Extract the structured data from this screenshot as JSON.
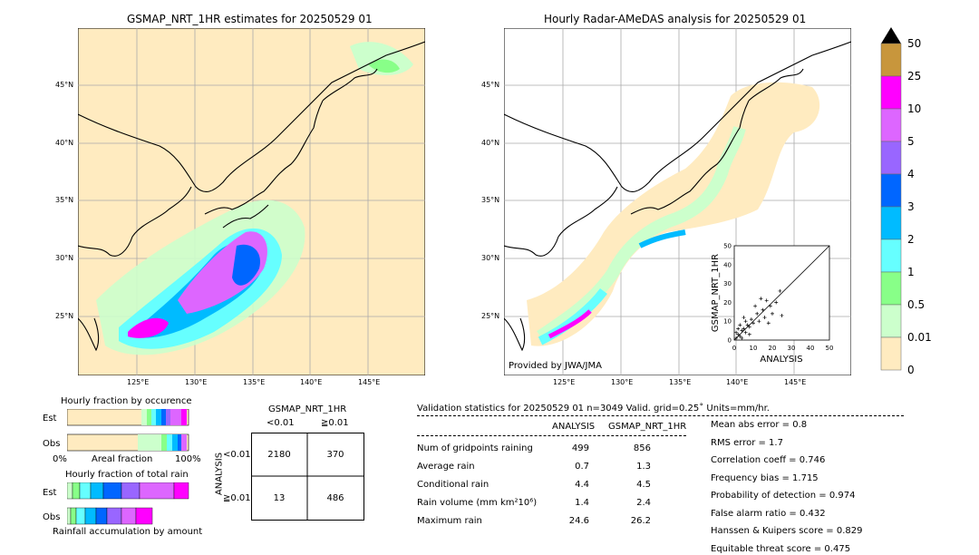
{
  "map_left": {
    "title": "GSMAP_NRT_1HR estimates for 20250529 01",
    "lat_labels": [
      "45°N",
      "40°N",
      "35°N",
      "30°N",
      "25°N"
    ],
    "lon_labels": [
      "125°E",
      "130°E",
      "135°E",
      "140°E",
      "145°E"
    ]
  },
  "map_right": {
    "title": "Hourly Radar-AMeDAS analysis for 20250529 01",
    "lat_labels": [
      "45°N",
      "40°N",
      "35°N",
      "30°N",
      "25°N"
    ],
    "lon_labels": [
      "125°E",
      "130°E",
      "135°E",
      "140°E",
      "145°E"
    ],
    "credit": "Provided by JWA/JMA"
  },
  "colorbar": {
    "levels": [
      "50",
      "25",
      "10",
      "5",
      "4",
      "3",
      "2",
      "1",
      "0.5",
      "0.01",
      "0"
    ],
    "colors": [
      "#c8963c",
      "#ff00ff",
      "#dd66ff",
      "#9966ff",
      "#0066ff",
      "#00bbff",
      "#66ffff",
      "#88ff88",
      "#ccffcc",
      "#ffebc0"
    ]
  },
  "fraction_occurrence": {
    "title": "Hourly fraction by occurence",
    "row_labels": [
      "Est",
      "Obs"
    ],
    "axis_left": "0%",
    "axis_mid": "Areal fraction",
    "axis_right": "100%"
  },
  "fraction_rain": {
    "title": "Hourly fraction of total rain",
    "row_labels": [
      "Est",
      "Obs"
    ],
    "axis_label": "Rainfall accumulation by amount"
  },
  "contingency": {
    "header": "GSMAP_NRT_1HR",
    "col_labels": [
      "<0.01",
      "≧0.01"
    ],
    "row_axis": "ANALYSIS",
    "row_labels": [
      "<0.01",
      "≧0.01"
    ],
    "cells": [
      "2180",
      "370",
      "13",
      "486"
    ]
  },
  "validation": {
    "header": "Validation statistics for 20250529 01  n=3049 Valid. grid=0.25˚ Units=mm/hr.",
    "col_analysis": "ANALYSIS",
    "col_gsmap": "GSMAP_NRT_1HR",
    "rows": [
      {
        "label": "Num of gridpoints raining",
        "analysis": "499",
        "gsmap": "856"
      },
      {
        "label": "Average rain",
        "analysis": "0.7",
        "gsmap": "1.3"
      },
      {
        "label": "Conditional rain",
        "analysis": "4.4",
        "gsmap": "4.5"
      },
      {
        "label": "Rain volume (mm km²10⁶)",
        "analysis": "1.4",
        "gsmap": "2.4"
      },
      {
        "label": "Maximum rain",
        "analysis": "24.6",
        "gsmap": "26.2"
      }
    ],
    "scores": [
      "Mean abs error =    0.8",
      "RMS error =    1.7",
      "Correlation coeff =  0.746",
      "Frequency bias =  1.715",
      "Probability of detection =  0.974",
      "False alarm ratio =  0.432",
      "Hanssen & Kuipers score =  0.829",
      "Equitable threat score =  0.475"
    ]
  },
  "chart_data": {
    "type": "scatter",
    "xlabel": "ANALYSIS",
    "ylabel": "GSMAP_NRT_1HR",
    "xlim": [
      0,
      50
    ],
    "ylim": [
      0,
      50
    ],
    "ticks": [
      "0",
      "10",
      "20",
      "30",
      "40",
      "50"
    ],
    "points": [
      [
        1,
        1
      ],
      [
        2,
        3
      ],
      [
        3,
        2
      ],
      [
        4,
        5
      ],
      [
        5,
        6
      ],
      [
        6,
        4
      ],
      [
        7,
        8
      ],
      [
        8,
        7
      ],
      [
        9,
        11
      ],
      [
        10,
        9
      ],
      [
        12,
        14
      ],
      [
        13,
        10
      ],
      [
        15,
        16
      ],
      [
        16,
        12
      ],
      [
        18,
        9
      ],
      [
        20,
        14
      ],
      [
        22,
        20
      ],
      [
        24,
        26
      ],
      [
        25,
        13
      ],
      [
        14,
        22
      ],
      [
        11,
        18
      ],
      [
        3,
        8
      ],
      [
        5,
        12
      ],
      [
        2,
        6
      ],
      [
        8,
        3
      ],
      [
        6,
        10
      ],
      [
        19,
        18
      ],
      [
        17,
        21
      ],
      [
        4,
        1
      ],
      [
        1,
        4
      ]
    ]
  }
}
